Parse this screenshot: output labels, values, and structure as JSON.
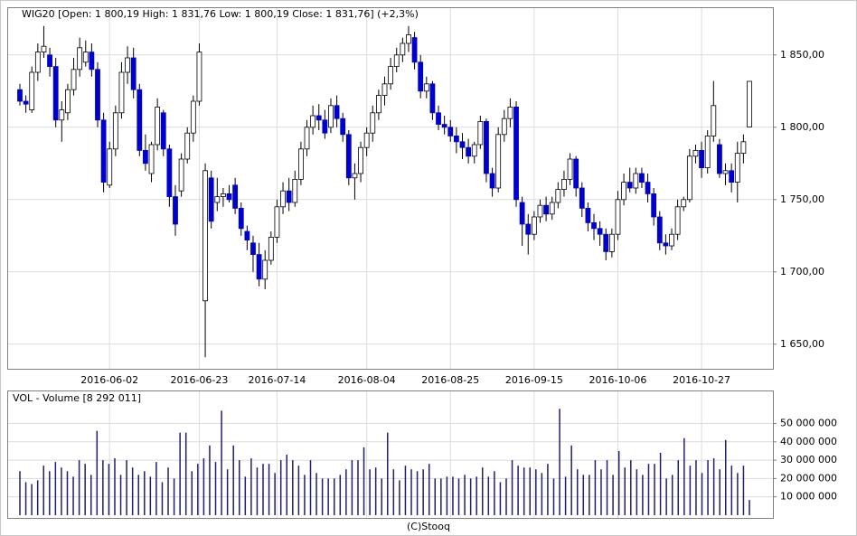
{
  "chart_data": [
    {
      "type": "candlestick",
      "title": "WIG20 [Open: 1 800,19  High: 1 831,76  Low: 1 800,19  Close: 1 831,76] (+2,3%)",
      "up_color": "#ffffff",
      "down_color": "#0000cc",
      "grid": true,
      "ylim": [
        1633,
        1883
      ],
      "yticks": [
        {
          "value": 1650,
          "label": "1 650,00"
        },
        {
          "value": 1700,
          "label": "1 700,00"
        },
        {
          "value": 1750,
          "label": "1 750,00"
        },
        {
          "value": 1800,
          "label": "1 800,00"
        },
        {
          "value": 1850,
          "label": "1 850,00"
        }
      ],
      "categories": [
        null,
        null,
        null,
        null,
        null,
        null,
        null,
        null,
        null,
        null,
        null,
        null,
        null,
        null,
        null,
        "2016-06-02",
        null,
        null,
        null,
        null,
        null,
        null,
        null,
        null,
        null,
        null,
        null,
        null,
        null,
        null,
        "2016-06-23",
        null,
        null,
        null,
        null,
        null,
        null,
        null,
        null,
        null,
        null,
        null,
        null,
        "2016-07-14",
        null,
        null,
        null,
        null,
        null,
        null,
        null,
        null,
        null,
        null,
        null,
        null,
        null,
        null,
        "2016-08-04",
        null,
        null,
        null,
        null,
        null,
        null,
        null,
        null,
        null,
        null,
        null,
        null,
        null,
        "2016-08-25",
        null,
        null,
        null,
        null,
        null,
        null,
        null,
        null,
        null,
        null,
        null,
        null,
        null,
        "2016-09-15",
        null,
        null,
        null,
        null,
        null,
        null,
        null,
        null,
        null,
        null,
        null,
        null,
        null,
        "2016-10-06",
        null,
        null,
        null,
        null,
        null,
        null,
        null,
        null,
        null,
        null,
        null,
        null,
        null,
        "2016-10-27",
        null,
        null,
        null,
        null,
        null,
        null,
        null,
        null,
        null
      ],
      "ohlc": [
        [
          1826,
          1830,
          1815,
          1818
        ],
        [
          1818,
          1822,
          1810,
          1816
        ],
        [
          1812,
          1842,
          1810,
          1838
        ],
        [
          1838,
          1858,
          1832,
          1852
        ],
        [
          1852,
          1870,
          1848,
          1856
        ],
        [
          1850,
          1855,
          1835,
          1842
        ],
        [
          1842,
          1848,
          1800,
          1805
        ],
        [
          1805,
          1818,
          1790,
          1812
        ],
        [
          1810,
          1830,
          1805,
          1826
        ],
        [
          1826,
          1848,
          1822,
          1840
        ],
        [
          1840,
          1862,
          1835,
          1855
        ],
        [
          1845,
          1860,
          1842,
          1852
        ],
        [
          1852,
          1858,
          1835,
          1840
        ],
        [
          1840,
          1845,
          1800,
          1805
        ],
        [
          1805,
          1810,
          1755,
          1762
        ],
        [
          1760,
          1790,
          1758,
          1785
        ],
        [
          1785,
          1815,
          1780,
          1810
        ],
        [
          1810,
          1845,
          1806,
          1838
        ],
        [
          1838,
          1856,
          1830,
          1848
        ],
        [
          1848,
          1855,
          1820,
          1826
        ],
        [
          1826,
          1830,
          1780,
          1784
        ],
        [
          1784,
          1795,
          1770,
          1775
        ],
        [
          1768,
          1790,
          1762,
          1788
        ],
        [
          1788,
          1820,
          1784,
          1814
        ],
        [
          1810,
          1812,
          1780,
          1785
        ],
        [
          1785,
          1788,
          1745,
          1752
        ],
        [
          1752,
          1760,
          1725,
          1733
        ],
        [
          1756,
          1782,
          1752,
          1778
        ],
        [
          1778,
          1800,
          1775,
          1796
        ],
        [
          1796,
          1822,
          1790,
          1818
        ],
        [
          1818,
          1858,
          1815,
          1852
        ],
        [
          1680,
          1775,
          1641,
          1770
        ],
        [
          1765,
          1770,
          1730,
          1735
        ],
        [
          1748,
          1765,
          1742,
          1752
        ],
        [
          1752,
          1758,
          1745,
          1754
        ],
        [
          1754,
          1760,
          1748,
          1750
        ],
        [
          1760,
          1765,
          1740,
          1744
        ],
        [
          1744,
          1748,
          1725,
          1730
        ],
        [
          1728,
          1732,
          1715,
          1722
        ],
        [
          1720,
          1725,
          1700,
          1712
        ],
        [
          1712,
          1720,
          1690,
          1695
        ],
        [
          1695,
          1715,
          1688,
          1708
        ],
        [
          1708,
          1728,
          1705,
          1724
        ],
        [
          1724,
          1750,
          1720,
          1745
        ],
        [
          1745,
          1762,
          1740,
          1756
        ],
        [
          1756,
          1765,
          1742,
          1748
        ],
        [
          1748,
          1770,
          1745,
          1764
        ],
        [
          1764,
          1790,
          1760,
          1785
        ],
        [
          1785,
          1805,
          1780,
          1800
        ],
        [
          1800,
          1815,
          1795,
          1808
        ],
        [
          1808,
          1816,
          1798,
          1805
        ],
        [
          1805,
          1812,
          1792,
          1796
        ],
        [
          1800,
          1820,
          1796,
          1815
        ],
        [
          1815,
          1822,
          1800,
          1806
        ],
        [
          1806,
          1810,
          1790,
          1795
        ],
        [
          1795,
          1798,
          1760,
          1765
        ],
        [
          1765,
          1775,
          1750,
          1768
        ],
        [
          1768,
          1790,
          1762,
          1786
        ],
        [
          1786,
          1800,
          1780,
          1796
        ],
        [
          1796,
          1815,
          1790,
          1810
        ],
        [
          1810,
          1826,
          1805,
          1822
        ],
        [
          1822,
          1835,
          1815,
          1830
        ],
        [
          1830,
          1848,
          1826,
          1842
        ],
        [
          1842,
          1855,
          1838,
          1850
        ],
        [
          1850,
          1862,
          1845,
          1858
        ],
        [
          1858,
          1870,
          1852,
          1864
        ],
        [
          1862,
          1866,
          1840,
          1845
        ],
        [
          1845,
          1850,
          1820,
          1825
        ],
        [
          1825,
          1835,
          1820,
          1830
        ],
        [
          1830,
          1832,
          1805,
          1810
        ],
        [
          1810,
          1815,
          1798,
          1802
        ],
        [
          1802,
          1808,
          1795,
          1800
        ],
        [
          1800,
          1805,
          1790,
          1794
        ],
        [
          1794,
          1800,
          1782,
          1790
        ],
        [
          1790,
          1796,
          1778,
          1786
        ],
        [
          1786,
          1792,
          1775,
          1780
        ],
        [
          1780,
          1790,
          1775,
          1788
        ],
        [
          1788,
          1808,
          1785,
          1804
        ],
        [
          1804,
          1806,
          1762,
          1768
        ],
        [
          1768,
          1772,
          1752,
          1758
        ],
        [
          1758,
          1800,
          1755,
          1795
        ],
        [
          1795,
          1812,
          1790,
          1806
        ],
        [
          1806,
          1820,
          1800,
          1814
        ],
        [
          1814,
          1818,
          1745,
          1750
        ],
        [
          1748,
          1752,
          1718,
          1733
        ],
        [
          1733,
          1740,
          1712,
          1726
        ],
        [
          1726,
          1742,
          1722,
          1738
        ],
        [
          1738,
          1750,
          1734,
          1746
        ],
        [
          1746,
          1752,
          1735,
          1740
        ],
        [
          1740,
          1752,
          1736,
          1748
        ],
        [
          1748,
          1762,
          1744,
          1757
        ],
        [
          1757,
          1770,
          1752,
          1764
        ],
        [
          1764,
          1782,
          1760,
          1778
        ],
        [
          1778,
          1780,
          1752,
          1758
        ],
        [
          1758,
          1762,
          1738,
          1744
        ],
        [
          1744,
          1748,
          1728,
          1734
        ],
        [
          1734,
          1740,
          1722,
          1730
        ],
        [
          1730,
          1735,
          1718,
          1726
        ],
        [
          1726,
          1730,
          1708,
          1714
        ],
        [
          1714,
          1730,
          1710,
          1726
        ],
        [
          1726,
          1756,
          1722,
          1750
        ],
        [
          1750,
          1768,
          1746,
          1762
        ],
        [
          1762,
          1772,
          1755,
          1758
        ],
        [
          1758,
          1772,
          1754,
          1768
        ],
        [
          1768,
          1772,
          1758,
          1762
        ],
        [
          1762,
          1768,
          1748,
          1754
        ],
        [
          1754,
          1758,
          1732,
          1738
        ],
        [
          1738,
          1742,
          1715,
          1720
        ],
        [
          1720,
          1726,
          1712,
          1718
        ],
        [
          1718,
          1730,
          1715,
          1726
        ],
        [
          1726,
          1750,
          1722,
          1745
        ],
        [
          1745,
          1752,
          1742,
          1750
        ],
        [
          1750,
          1785,
          1748,
          1780
        ],
        [
          1780,
          1788,
          1775,
          1784
        ],
        [
          1784,
          1790,
          1765,
          1772
        ],
        [
          1772,
          1798,
          1768,
          1794
        ],
        [
          1794,
          1832,
          1790,
          1815
        ],
        [
          1788,
          1792,
          1765,
          1768
        ],
        [
          1768,
          1775,
          1760,
          1770
        ],
        [
          1770,
          1775,
          1755,
          1762
        ],
        [
          1762,
          1790,
          1748,
          1782
        ],
        [
          1782,
          1795,
          1775,
          1790
        ],
        [
          1800.19,
          1831.76,
          1800.19,
          1831.76
        ]
      ]
    },
    {
      "type": "bar",
      "title": "VOL - Volume [8 292 011]",
      "color": "#1f1f70",
      "grid": true,
      "ylim": [
        -1500000,
        68000000
      ],
      "yticks": [
        {
          "value": 10000000,
          "label": "10 000 000"
        },
        {
          "value": 20000000,
          "label": "20 000 000"
        },
        {
          "value": 30000000,
          "label": "30 000 000"
        },
        {
          "value": 40000000,
          "label": "40 000 000"
        },
        {
          "value": 50000000,
          "label": "50 000 000"
        }
      ],
      "values": [
        24000000,
        18000000,
        17000000,
        19000000,
        27000000,
        24000000,
        29000000,
        26000000,
        24000000,
        21000000,
        30000000,
        28000000,
        22000000,
        46000000,
        30000000,
        28000000,
        31000000,
        22000000,
        30000000,
        26000000,
        22000000,
        24000000,
        21000000,
        29000000,
        18000000,
        26000000,
        20000000,
        45000000,
        45000000,
        24000000,
        28000000,
        31000000,
        38000000,
        29000000,
        57000000,
        25000000,
        38000000,
        30000000,
        21000000,
        31000000,
        26000000,
        28000000,
        28000000,
        23000000,
        30000000,
        33000000,
        30000000,
        27000000,
        22000000,
        30000000,
        23000000,
        20000000,
        20000000,
        20000000,
        22000000,
        25000000,
        30000000,
        30000000,
        37000000,
        25000000,
        26000000,
        20000000,
        45000000,
        25000000,
        19000000,
        27000000,
        25000000,
        24000000,
        25000000,
        28000000,
        20000000,
        20000000,
        21000000,
        21000000,
        20000000,
        22000000,
        20000000,
        21000000,
        26000000,
        21000000,
        24000000,
        18000000,
        20000000,
        30000000,
        27000000,
        26000000,
        26000000,
        25000000,
        23000000,
        28000000,
        20000000,
        58000000,
        21000000,
        38000000,
        25000000,
        22000000,
        22000000,
        30000000,
        25000000,
        30000000,
        22000000,
        35000000,
        26000000,
        30000000,
        25000000,
        22000000,
        28000000,
        28000000,
        34000000,
        20000000,
        22000000,
        30000000,
        42000000,
        27000000,
        30000000,
        23000000,
        30000000,
        31000000,
        25000000,
        41000000,
        27000000,
        23000000,
        27000000,
        8292011
      ]
    }
  ],
  "footer": "(C)Stooq"
}
